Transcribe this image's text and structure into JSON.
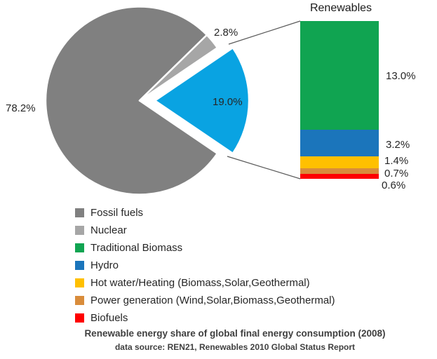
{
  "title": {
    "text": "Renewables"
  },
  "chart_data": [
    {
      "type": "pie",
      "title": "",
      "categories": [
        "Fossil fuels",
        "Nuclear",
        "Renewables"
      ],
      "values": [
        78.2,
        2.8,
        19.0
      ],
      "labels": [
        "78.2%",
        "2.8%",
        "19.0%"
      ],
      "colors": [
        "#808080",
        "#A6A6A6",
        "#09A3E2"
      ],
      "exploded_slice": "Renewables",
      "legend_position": "bottom-left"
    },
    {
      "type": "bar",
      "title": "Renewables",
      "stacked": true,
      "categories": [
        "Traditional Biomass",
        "Hydro",
        "Hot water/Heating (Biomass,Solar,Geothermal)",
        "Power generation (Wind,Solar,Biomass,Geothermal)",
        "Biofuels"
      ],
      "values": [
        13.0,
        3.2,
        1.4,
        0.7,
        0.6
      ],
      "labels": [
        "13.0%",
        "3.2%",
        "1.4%",
        "0.7%",
        "0.6%"
      ],
      "colors": [
        "#10A451",
        "#1B75BB",
        "#FFC000",
        "#D98C3B",
        "#FE0000"
      ],
      "ylim": [
        0,
        18.9
      ]
    }
  ],
  "legend": {
    "items": [
      {
        "label": "Fossil fuels",
        "color": "#808080"
      },
      {
        "label": "Nuclear",
        "color": "#A6A6A6"
      },
      {
        "label": "Traditional Biomass",
        "color": "#10A451"
      },
      {
        "label": "Hydro",
        "color": "#1B75BB"
      },
      {
        "label": "Hot water/Heating (Biomass,Solar,Geothermal)",
        "color": "#FFC000"
      },
      {
        "label": "Power generation (Wind,Solar,Biomass,Geothermal)",
        "color": "#D98C3B"
      },
      {
        "label": "Biofuels",
        "color": "#FE0000"
      }
    ]
  },
  "caption": {
    "line1": "Renewable energy share of global final energy consumption (2008)",
    "line2": "data source: REN21, Renewables 2010 Global Status Report"
  },
  "colors": {
    "connector": "#595959",
    "text": "#262626",
    "background": "#FFFFFF"
  }
}
